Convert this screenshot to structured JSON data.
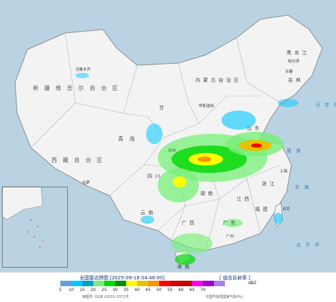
{
  "map": {
    "labels": {
      "xinjiang": "新 疆 维 吾 尔 自 治 区",
      "xizang": "西 藏 自 治 区",
      "qinghai": "青 海",
      "neimenggu": "内 蒙 古 自 治 区",
      "heilongjiang": "黑 龙 江",
      "jilin": "吉 林",
      "gansu": "甘",
      "sichuan": "四 川",
      "shandong": "山 东",
      "zhejiang": "浙 江",
      "guangdong": "广 东",
      "hunan": "湖 南",
      "jiangxi": "江 西",
      "yunnan": "云 南",
      "guangxi": "广 西",
      "fujian": "福 建",
      "hainan": "海 南",
      "yellow_sea": "黄 海",
      "east_sea": "东 海",
      "pacific": "太 平 洋",
      "sea_of_japan": "日 本 海"
    },
    "cities": {
      "urumqi": "乌鲁木齐",
      "harbin": "哈尔滨",
      "changchun": "长春",
      "hohhot": "呼和浩特",
      "lanzhou": "兰州",
      "shanghai": "上海",
      "taipei": "台北",
      "guangzhou": "广州",
      "lhasa": "拉萨"
    }
  },
  "legend": {
    "title": "全国雷达拼图 [2025-09-18 04:48:00]",
    "product": "[ 组合反射率 ]",
    "unit": "dBZ",
    "ticks": [
      "5",
      "10",
      "15",
      "20",
      "25",
      "30",
      "35",
      "40",
      "45",
      "50",
      "55",
      "60",
      "65",
      "70"
    ],
    "colors": [
      "#64a0d8",
      "#00c8ff",
      "#00a0c8",
      "#78f078",
      "#00d800",
      "#009000",
      "#ffff00",
      "#e8c000",
      "#ff9000",
      "#ff0000",
      "#d00000",
      "#c00000",
      "#ff00f0",
      "#a000c8",
      "#a880f0"
    ],
    "approval": "审图号: GS京 (2022) 0372号",
    "source": "中国气象局国家气象中心"
  }
}
